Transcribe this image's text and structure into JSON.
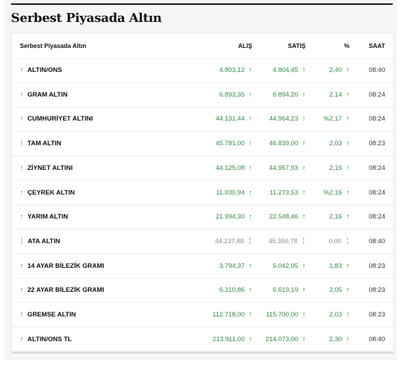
{
  "heading": "Serbest Piyasada Altın",
  "table": {
    "headers": {
      "name": "Serbest Piyasada Altın",
      "alis": "ALIŞ",
      "satis": "SATIŞ",
      "pct": "%",
      "saat": "SAAT"
    },
    "rows": [
      {
        "name": "ALTIN/ONS",
        "alis": "4.803,12",
        "satis": "4.804,45",
        "pct": "2,40",
        "saat": "08:40",
        "trend": "up"
      },
      {
        "name": "GRAM ALTIN",
        "alis": "6.893,35",
        "satis": "6.894,20",
        "pct": "2,14",
        "saat": "08:24",
        "trend": "up"
      },
      {
        "name": "CUMHURİYET ALTINI",
        "alis": "44.131,44",
        "satis": "44.964,23",
        "pct": "%2,17",
        "saat": "08:24",
        "trend": "up"
      },
      {
        "name": "TAM ALTIN",
        "alis": "45.781,00",
        "satis": "46.839,00",
        "pct": "2,03",
        "saat": "08:23",
        "trend": "up"
      },
      {
        "name": "ZİYNET ALTINI",
        "alis": "44.125,08",
        "satis": "44.957,93",
        "pct": "2,16",
        "saat": "08:24",
        "trend": "up"
      },
      {
        "name": "ÇEYREK ALTIN",
        "alis": "11.030,94",
        "satis": "11.273,53",
        "pct": "%2,16",
        "saat": "08:24",
        "trend": "up"
      },
      {
        "name": "YARIM ALTIN",
        "alis": "21.994,30",
        "satis": "22.548,46",
        "pct": "2,16",
        "saat": "08:24",
        "trend": "up"
      },
      {
        "name": "ATA ALTIN",
        "alis": "44.237,88",
        "satis": "45.350,78",
        "pct": "0,00",
        "saat": "08:40",
        "trend": "flat"
      },
      {
        "name": "14 AYAR BİLEZİK GRAMI",
        "alis": "3.794,37",
        "satis": "5.042,05",
        "pct": "1,83",
        "saat": "08:23",
        "trend": "up"
      },
      {
        "name": "22 AYAR BİLEZİK GRAMI",
        "alis": "6.310,86",
        "satis": "6.619,19",
        "pct": "2,05",
        "saat": "08:23",
        "trend": "up"
      },
      {
        "name": "GREMSE ALTIN",
        "alis": "112.718,00",
        "satis": "115.700,00",
        "pct": "2,03",
        "saat": "08:23",
        "trend": "up"
      },
      {
        "name": "ALTIN/ONS TL",
        "alis": "213.911,00",
        "satis": "214.073,00",
        "pct": "2,30",
        "saat": "08:40",
        "trend": "up"
      }
    ]
  },
  "colors": {
    "up": "#2e8b3d",
    "flat": "#8a8a8a"
  }
}
